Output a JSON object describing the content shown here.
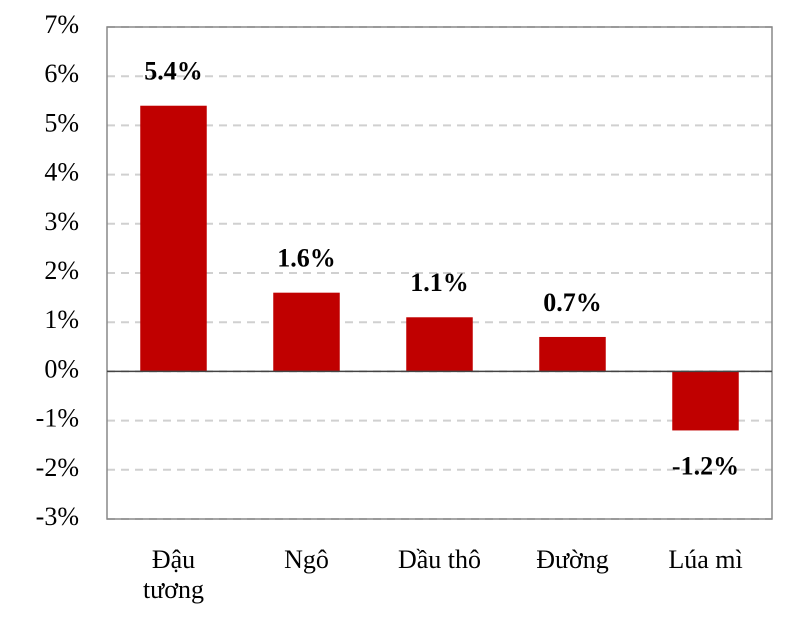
{
  "chart_data": {
    "type": "bar",
    "categories": [
      "Đậu tương",
      "Ngô",
      "Dầu thô",
      "Đường",
      "Lúa mì"
    ],
    "values": [
      5.4,
      1.6,
      1.1,
      0.7,
      -1.2
    ],
    "value_labels": [
      "5.4%",
      "1.6%",
      "1.1%",
      "0.7%",
      "-1.2%"
    ],
    "color": "#c00000",
    "ylim": [
      -3,
      7
    ],
    "yticks": [
      {
        "value": -3,
        "label": "-3%"
      },
      {
        "value": -2,
        "label": "-2%"
      },
      {
        "value": -1,
        "label": "-1%"
      },
      {
        "value": 0,
        "label": "0%"
      },
      {
        "value": 1,
        "label": "1%"
      },
      {
        "value": 2,
        "label": "2%"
      },
      {
        "value": 3,
        "label": "3%"
      },
      {
        "value": 4,
        "label": "4%"
      },
      {
        "value": 5,
        "label": "5%"
      },
      {
        "value": 6,
        "label": "6%"
      },
      {
        "value": 7,
        "label": "7%"
      }
    ],
    "grid": true
  }
}
